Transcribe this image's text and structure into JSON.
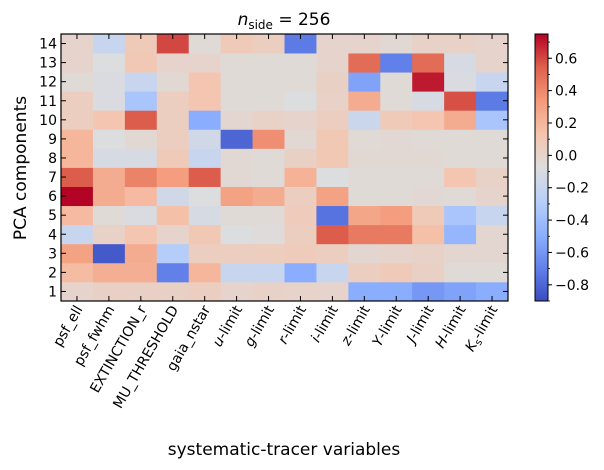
{
  "chart_data": {
    "type": "heatmap",
    "title": "n_side = 256",
    "title_parts": {
      "symbol": "n",
      "subscript": "side",
      "rest": " = 256"
    },
    "xlabel": "systematic-tracer variables",
    "ylabel": "PCA components",
    "x_categories": [
      "psf_ell",
      "psf_fwhm",
      "EXTINCTION_r",
      "MU_THRESHOLD",
      "gaia_nstar",
      "u-limit",
      "g-limit",
      "r-limit",
      "i-limit",
      "z-limit",
      "Y-limit",
      "J-limit",
      "H-limit",
      "Ks-limit"
    ],
    "x_tick_labels": [
      {
        "main": "psf_ell"
      },
      {
        "main": "psf_fwhm"
      },
      {
        "main": "EXTINCTION_r"
      },
      {
        "main": "MU_THRESHOLD"
      },
      {
        "main": "gaia_nstar"
      },
      {
        "italic": "u",
        "main": "-limit"
      },
      {
        "italic": "g",
        "main": "-limit"
      },
      {
        "italic": "r",
        "main": "-limit"
      },
      {
        "italic": "i",
        "main": "-limit"
      },
      {
        "italic": "z",
        "main": "-limit"
      },
      {
        "italic": "Y",
        "main": "-limit"
      },
      {
        "italic": "J",
        "main": "-limit"
      },
      {
        "italic": "H",
        "main": "-limit"
      },
      {
        "italic": "K",
        "sub": "s",
        "main": "-limit"
      }
    ],
    "y_categories": [
      1,
      2,
      3,
      4,
      5,
      6,
      7,
      8,
      9,
      10,
      11,
      12,
      13,
      14
    ],
    "values": [
      [
        0.0,
        0.03,
        0.03,
        0.03,
        0.05,
        0.0,
        0.02,
        0.01,
        0.0,
        -0.5,
        -0.5,
        -0.6,
        -0.55,
        -0.5
      ],
      [
        0.17,
        0.24,
        0.24,
        -0.7,
        0.2,
        -0.2,
        -0.2,
        -0.5,
        -0.2,
        0.05,
        0.08,
        0.03,
        -0.05,
        -0.05
      ],
      [
        0.3,
        -0.85,
        0.25,
        -0.3,
        0.05,
        0.05,
        0.06,
        0.07,
        0.05,
        -0.02,
        0.0,
        0.02,
        -0.02,
        -0.02
      ],
      [
        -0.2,
        0.02,
        0.12,
        0.0,
        0.1,
        -0.08,
        -0.06,
        0.05,
        0.55,
        0.45,
        0.45,
        0.15,
        -0.45,
        -0.02
      ],
      [
        0.18,
        -0.05,
        -0.1,
        0.15,
        -0.12,
        -0.05,
        -0.05,
        0.07,
        -0.75,
        0.28,
        0.32,
        0.08,
        -0.35,
        -0.2
      ],
      [
        0.75,
        0.25,
        0.18,
        -0.15,
        -0.08,
        0.3,
        0.25,
        0.05,
        0.3,
        -0.05,
        -0.05,
        -0.03,
        -0.05,
        0.0
      ],
      [
        0.55,
        0.25,
        0.42,
        0.32,
        0.55,
        -0.03,
        -0.05,
        0.22,
        -0.08,
        -0.05,
        -0.05,
        -0.05,
        0.12,
        0.02
      ],
      [
        0.2,
        -0.12,
        -0.12,
        0.08,
        -0.2,
        -0.03,
        -0.05,
        0.03,
        0.1,
        -0.03,
        -0.03,
        -0.03,
        -0.05,
        -0.05
      ],
      [
        0.2,
        -0.08,
        -0.03,
        0.05,
        -0.15,
        -0.8,
        0.38,
        -0.03,
        0.1,
        -0.05,
        -0.03,
        -0.05,
        -0.05,
        -0.05
      ],
      [
        0.05,
        0.12,
        0.55,
        0.05,
        -0.5,
        -0.02,
        0.02,
        0.0,
        0.05,
        -0.18,
        0.08,
        0.12,
        0.25,
        -0.35
      ],
      [
        0.05,
        -0.1,
        -0.35,
        0.05,
        0.12,
        -0.05,
        -0.05,
        -0.08,
        0.02,
        0.25,
        -0.05,
        -0.12,
        0.58,
        -0.72
      ],
      [
        -0.05,
        -0.1,
        -0.2,
        -0.03,
        0.12,
        -0.05,
        -0.05,
        -0.05,
        0.03,
        -0.55,
        -0.05,
        0.7,
        -0.1,
        -0.2
      ],
      [
        0.0,
        -0.08,
        0.1,
        0.0,
        0.0,
        -0.05,
        -0.05,
        -0.05,
        0.0,
        0.5,
        -0.7,
        0.5,
        -0.12,
        0.0
      ],
      [
        0.0,
        -0.2,
        0.08,
        0.6,
        -0.05,
        0.08,
        0.05,
        -0.72,
        0.0,
        0.0,
        -0.03,
        0.02,
        0.02,
        0.0
      ]
    ],
    "vmin": -0.9,
    "vmax": 0.75,
    "colormap": "coolwarm",
    "colorbar_ticks": [
      0.6,
      0.4,
      0.2,
      0.0,
      -0.2,
      -0.4,
      -0.6,
      -0.8
    ],
    "colorbar_tick_labels": [
      "0.6",
      "0.4",
      "0.2",
      "0.0",
      "−0.2",
      "−0.4",
      "−0.6",
      "−0.8"
    ],
    "y_tick_labels": [
      "1",
      "2",
      "3",
      "4",
      "5",
      "6",
      "7",
      "8",
      "9",
      "10",
      "11",
      "12",
      "13",
      "14"
    ],
    "grid": false,
    "legend": "none"
  }
}
